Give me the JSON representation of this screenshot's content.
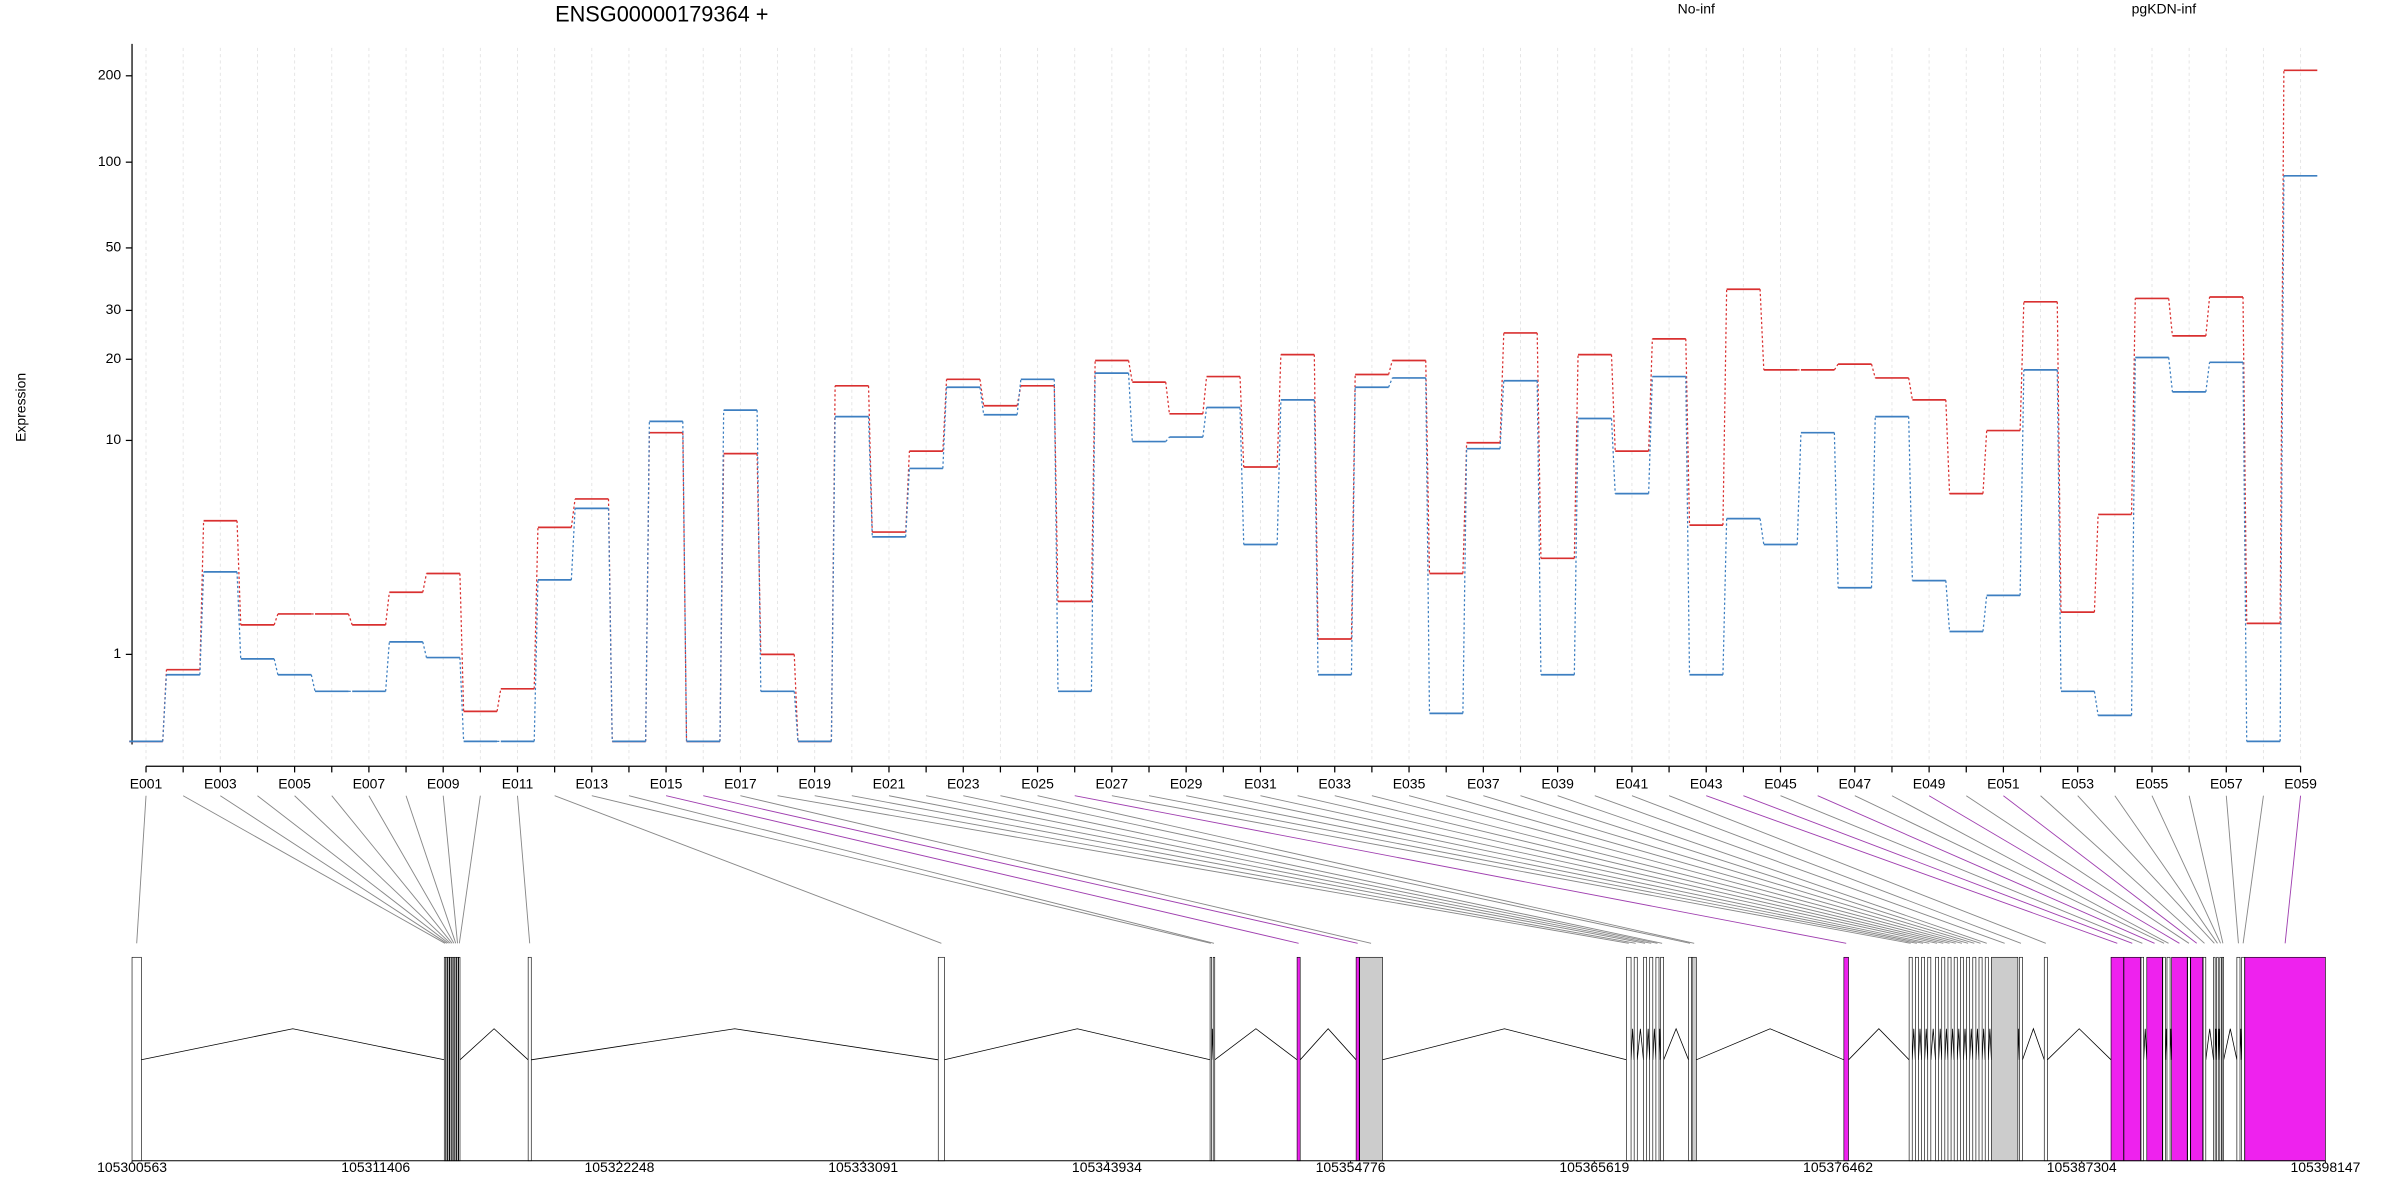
{
  "chart_data": [
    {
      "type": "line",
      "title": "ENSG00000179364 +",
      "y_label": "Expression",
      "yscale": "log1p",
      "ylim": [
        0,
        250
      ],
      "yticks": [
        1,
        10,
        20,
        30,
        50,
        100,
        200
      ],
      "grid": true,
      "legend": "top",
      "categories": [
        "E001",
        null,
        "E003",
        null,
        "E005",
        null,
        "E007",
        null,
        "E009",
        null,
        "E011",
        null,
        "E013",
        null,
        "E015",
        null,
        "E017",
        null,
        "E019",
        null,
        "E021",
        null,
        "E023",
        null,
        "E025",
        null,
        "E027",
        null,
        "E029",
        null,
        "E031",
        null,
        "E033",
        null,
        "E035",
        null,
        "E037",
        null,
        "E039",
        null,
        "E041",
        null,
        "E043",
        null,
        "E045",
        null,
        "E047",
        null,
        "E049",
        null,
        "E051",
        null,
        "E053",
        null,
        "E055",
        null,
        "E057",
        null,
        "E059"
      ],
      "series": [
        {
          "name": "No-inf",
          "color": "#d93030",
          "values": [
            0,
            0.77,
            4.8,
            1.53,
            1.76,
            1.76,
            1.53,
            2.28,
            2.81,
            0.27,
            0.52,
            4.5,
            5.9,
            0,
            10.7,
            0,
            8.9,
            1.0,
            0,
            16,
            4.3,
            9.1,
            16.9,
            13.5,
            16,
            2.05,
            19.8,
            16.5,
            12.6,
            17.3,
            7.9,
            20.8,
            1.26,
            17.6,
            19.8,
            2.81,
            9.8,
            24.9,
            3.3,
            20.8,
            9.1,
            23.7,
            4.6,
            35.7,
            18.3,
            18.3,
            19.2,
            17.1,
            14.2,
            6.2,
            10.9,
            32.2,
            1.8,
            5.1,
            33.1,
            24.3,
            33.5,
            1.56,
            209
          ]
        },
        {
          "name": "pgKDN-inf",
          "color": "#3d7fc1",
          "values": [
            0,
            0.7,
            2.86,
            0.93,
            0.7,
            0.49,
            0.49,
            1.21,
            0.95,
            0,
            0,
            2.62,
            5.4,
            0,
            11.8,
            0,
            13,
            0.49,
            0,
            12.3,
            4.1,
            7.8,
            15.8,
            12.5,
            16.9,
            0.49,
            17.8,
            9.9,
            10.3,
            13.3,
            3.8,
            14.2,
            0.7,
            15.8,
            17.1,
            0.25,
            9.3,
            16.7,
            0.7,
            12.1,
            6.2,
            17.3,
            0.7,
            4.9,
            3.8,
            10.7,
            2.4,
            12.3,
            2.6,
            1.4,
            2.2,
            18.3,
            0.49,
            0.23,
            20.3,
            15.2,
            19.5,
            0,
            89.6
          ]
        }
      ]
    },
    {
      "type": "gene_model",
      "xlim": [
        105300563,
        105398147
      ],
      "xticks": [
        105300563,
        105311406,
        105322248,
        105333091,
        105343934,
        105354776,
        105365619,
        105376462,
        105387304,
        105398147
      ],
      "exon_starts": [
        105300563,
        105314454,
        105314534,
        105314614,
        105314694,
        105314774,
        105314854,
        105314934,
        105315014,
        105315094,
        105318186,
        105336431,
        105348525,
        105348664,
        105352396,
        105355022,
        105355180,
        105367047,
        105367392,
        105367807,
        105368084,
        105368360,
        105368567,
        105369811,
        105369969,
        105376722,
        105379625,
        105379901,
        105380178,
        105380454,
        105380800,
        105381076,
        105381353,
        105381629,
        105381905,
        105382181,
        105382458,
        105382734,
        105383010,
        105383288,
        105384532,
        105385637,
        105388609,
        105389183,
        105389942,
        105390199,
        105390910,
        105391097,
        105391304,
        105392016,
        105392154,
        105392707,
        105393170,
        105393309,
        105393447,
        105393550,
        105394207,
        105394420,
        105394560
      ],
      "exon_ends": [
        105300978,
        105314514,
        105314594,
        105314674,
        105314754,
        105314834,
        105314914,
        105314994,
        105315074,
        105315154,
        105318324,
        105336708,
        105348594,
        105348733,
        105352534,
        105355160,
        105356197,
        105367254,
        105367530,
        105367945,
        105368222,
        105368498,
        105368705,
        105369949,
        105370157,
        105376930,
        105379763,
        105380040,
        105380316,
        105380592,
        105380938,
        105381214,
        105381491,
        105381767,
        105382043,
        105382320,
        105382596,
        105382872,
        105383148,
        105384463,
        105384670,
        105385776,
        105389163,
        105389922,
        105390060,
        105390890,
        105391028,
        105391235,
        105391996,
        105392134,
        105392687,
        105392825,
        105393240,
        105393378,
        105393516,
        105393620,
        105394346,
        105394550,
        105398147
      ],
      "exon_colors": [
        "#ffffff",
        "#ffffff",
        "#ffffff",
        "#ffffff",
        "#ffffff",
        "#ffffff",
        "#ffffff",
        "#ffffff",
        "#ffffff",
        "#ffffff",
        "#ffffff",
        "#ffffff",
        "#ffffff",
        "#ffffff",
        "#ee22ee",
        "#ee22ee",
        "#cccccc",
        "#ffffff",
        "#ffffff",
        "#ffffff",
        "#ffffff",
        "#ffffff",
        "#ffffff",
        "#ffffff",
        "#cccccc",
        "#ee22ee",
        "#ffffff",
        "#ffffff",
        "#ffffff",
        "#ffffff",
        "#ffffff",
        "#ffffff",
        "#ffffff",
        "#ffffff",
        "#ffffff",
        "#ffffff",
        "#ffffff",
        "#ffffff",
        "#ffffff",
        "#cccccc",
        "#ffffff",
        "#ffffff",
        "#ee22ee",
        "#ee22ee",
        "#ffffff",
        "#ee22ee",
        "#ffffff",
        "#ffffff",
        "#ee22ee",
        "#ffffff",
        "#ee22ee",
        "#ffffff",
        "#ffffff",
        "#ffffff",
        "#ffffff",
        "#ffffff",
        "#ffffff",
        "#ffffff",
        "#ee22ee"
      ]
    }
  ]
}
